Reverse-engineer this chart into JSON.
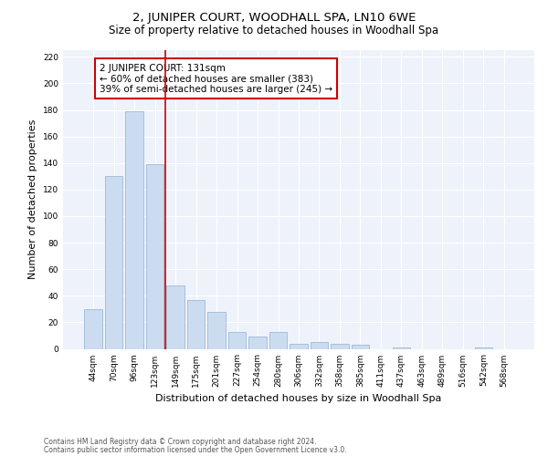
{
  "title": "2, JUNIPER COURT, WOODHALL SPA, LN10 6WE",
  "subtitle": "Size of property relative to detached houses in Woodhall Spa",
  "xlabel": "Distribution of detached houses by size in Woodhall Spa",
  "ylabel": "Number of detached properties",
  "footnote1": "Contains HM Land Registry data © Crown copyright and database right 2024.",
  "footnote2": "Contains public sector information licensed under the Open Government Licence v3.0.",
  "bar_labels": [
    "44sqm",
    "70sqm",
    "96sqm",
    "123sqm",
    "149sqm",
    "175sqm",
    "201sqm",
    "227sqm",
    "254sqm",
    "280sqm",
    "306sqm",
    "332sqm",
    "358sqm",
    "385sqm",
    "411sqm",
    "437sqm",
    "463sqm",
    "489sqm",
    "516sqm",
    "542sqm",
    "568sqm"
  ],
  "bar_values": [
    30,
    130,
    179,
    139,
    48,
    37,
    28,
    13,
    9,
    13,
    4,
    5,
    4,
    3,
    0,
    1,
    0,
    0,
    0,
    1,
    0
  ],
  "bar_color": "#ccdcf0",
  "bar_edgecolor": "#9bbad8",
  "vline_x_idx": 3,
  "vline_color": "#cc0000",
  "annotation_line1": "2 JUNIPER COURT: 131sqm",
  "annotation_line2": "← 60% of detached houses are smaller (383)",
  "annotation_line3": "39% of semi-detached houses are larger (245) →",
  "annotation_box_edgecolor": "#cc0000",
  "ylim": [
    0,
    225
  ],
  "yticks": [
    0,
    20,
    40,
    60,
    80,
    100,
    120,
    140,
    160,
    180,
    200,
    220
  ],
  "background_color": "#eef2fb",
  "grid_color": "#ffffff",
  "title_fontsize": 9.5,
  "subtitle_fontsize": 8.5,
  "ylabel_fontsize": 8,
  "xlabel_fontsize": 8,
  "tick_fontsize": 6.5,
  "annotation_fontsize": 7.5,
  "footnote_fontsize": 5.5
}
